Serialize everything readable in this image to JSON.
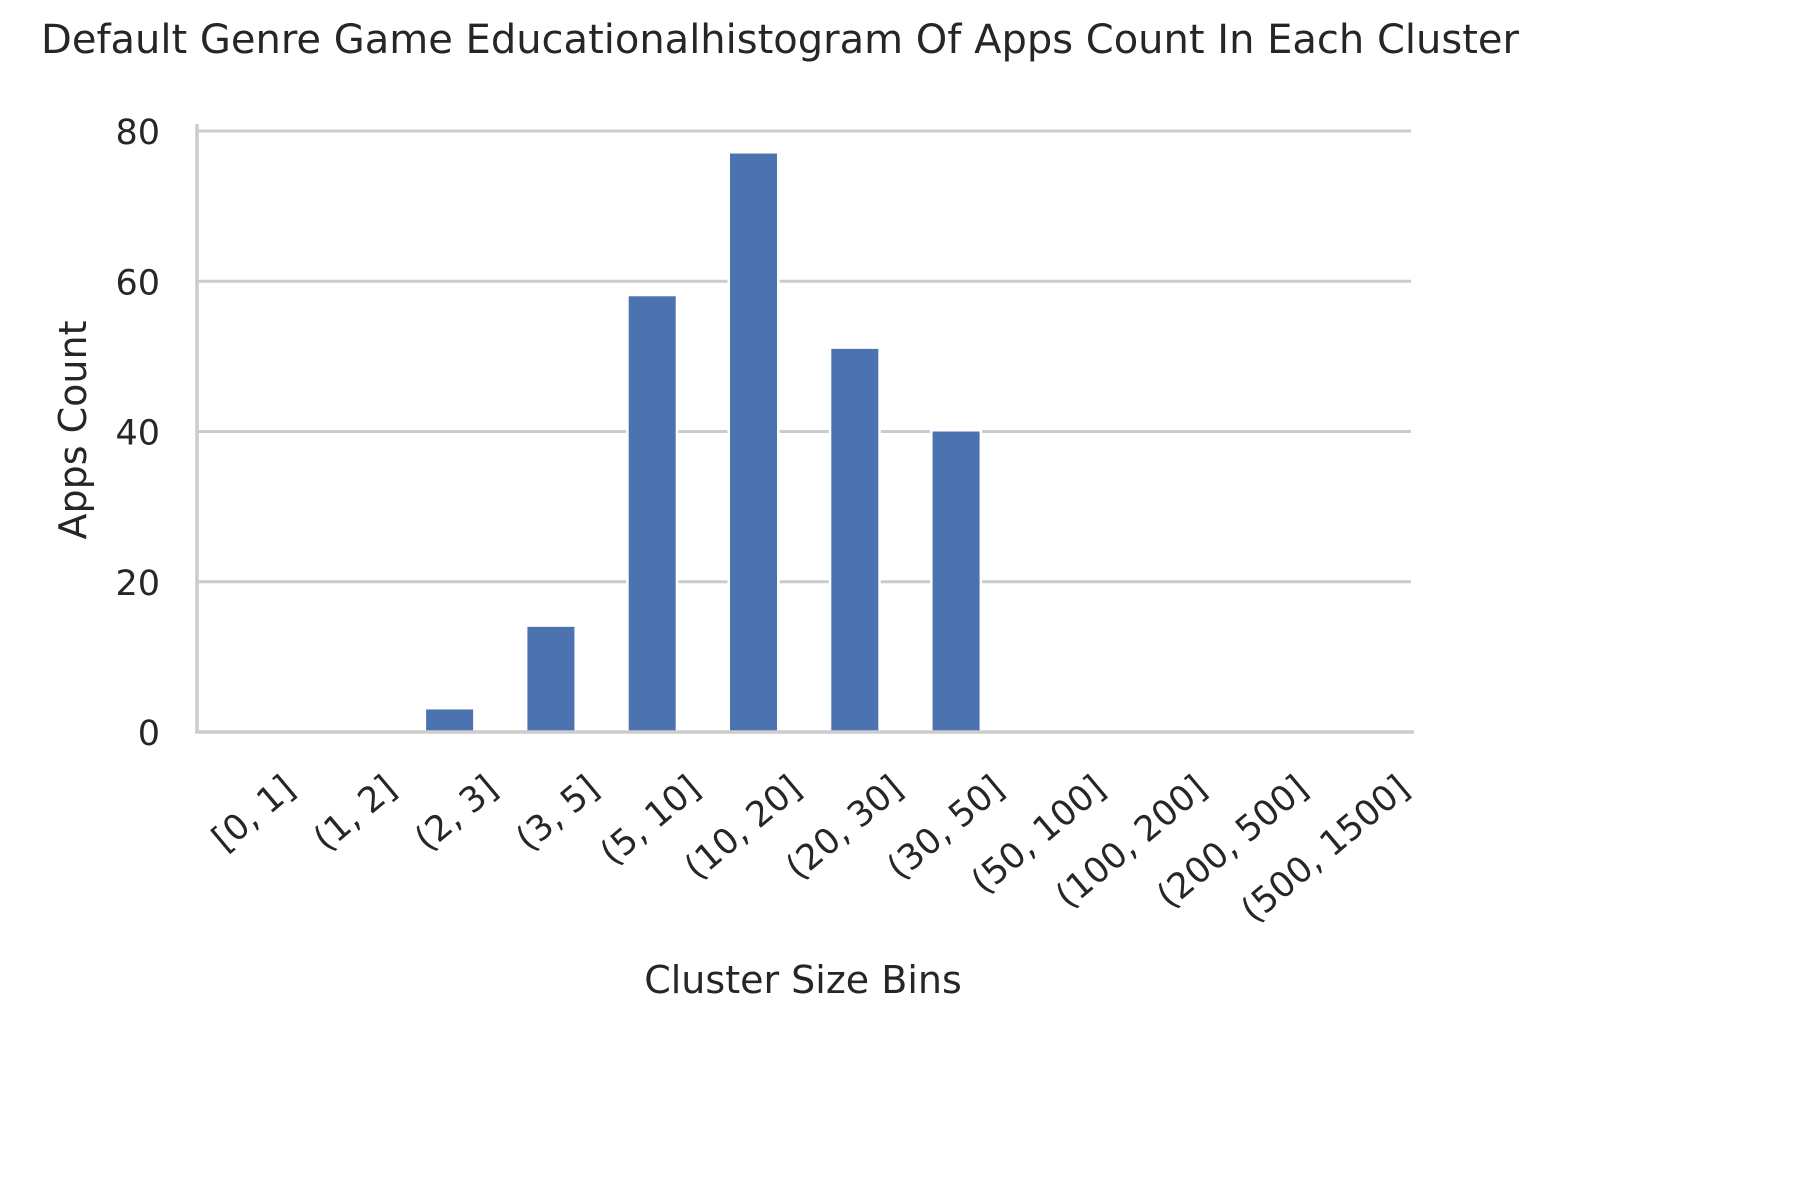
{
  "chart_data": {
    "type": "bar",
    "title": "Default Genre Game Educationalhistogram Of Apps Count In Each Cluster",
    "xlabel": "Cluster Size Bins",
    "ylabel": "Apps Count",
    "categories": [
      "[0, 1]",
      "(1, 2]",
      "(2, 3]",
      "(3, 5]",
      "(5, 10]",
      "(10, 20]",
      "(20, 30]",
      "(30, 50]",
      "(50, 100]",
      "(100, 200]",
      "(200, 500]",
      "(500, 1500]"
    ],
    "values": [
      0,
      0,
      3,
      14,
      58,
      77,
      51,
      40,
      0,
      0,
      0,
      0
    ],
    "ylim": [
      0,
      80
    ],
    "yticks": [
      0,
      20,
      40,
      60,
      80
    ],
    "grid": true,
    "bar_color": "#4c72b0",
    "grid_color": "#cccccc",
    "text_color": "#262626"
  }
}
